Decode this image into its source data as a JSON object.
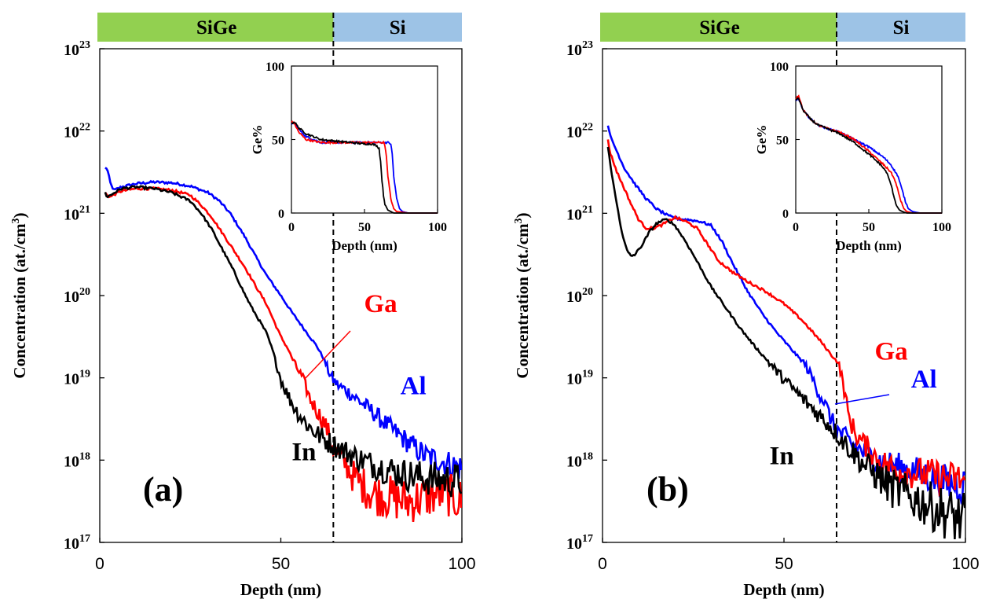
{
  "chart_data": [
    {
      "panel_label": "(a)",
      "type": "line",
      "x_scale": "linear",
      "y_scale": "log",
      "xlabel": "Depth (nm)",
      "ylabel": "Concentration (at./cm",
      "ylabel_sup": "3",
      "ylabel_end": ")",
      "xlim": [
        0,
        100
      ],
      "ylim_exp": [
        17,
        23
      ],
      "x_ticks": [
        0,
        50,
        100
      ],
      "y_ticks_exp": [
        17,
        18,
        19,
        20,
        21,
        22,
        23
      ],
      "y_tick_base": "10",
      "interface_depth": 64.5,
      "region_labels": [
        "SiGe",
        "Si"
      ],
      "region_colors": [
        "#92d050",
        "#9dc3e6"
      ],
      "series": [
        {
          "name": "Al",
          "color": "#0000ff",
          "x": [
            1.5,
            2,
            3,
            4,
            6,
            10,
            15,
            20,
            25,
            30,
            33,
            36,
            40,
            43,
            46,
            50,
            53,
            56,
            58,
            60,
            62,
            63,
            64,
            66,
            68,
            70,
            75,
            80,
            85,
            90,
            95,
            100
          ],
          "y": [
            21.55,
            21.55,
            21.35,
            21.28,
            21.32,
            21.36,
            21.38,
            21.37,
            21.33,
            21.25,
            21.15,
            21.0,
            20.72,
            20.48,
            20.25,
            20.0,
            19.8,
            19.62,
            19.5,
            19.38,
            19.22,
            19.1,
            19.0,
            18.9,
            18.85,
            18.78,
            18.6,
            18.4,
            18.22,
            18.05,
            17.98,
            17.9
          ],
          "label": {
            "text": "Al",
            "x": 83,
            "y": 18.8
          }
        },
        {
          "name": "Ga",
          "color": "#ff0000",
          "x": [
            1.5,
            2,
            3,
            4,
            6,
            10,
            15,
            20,
            25,
            28,
            31,
            34,
            37,
            40,
            43,
            46,
            48,
            50,
            52,
            54,
            56,
            58,
            60,
            62,
            63,
            64,
            65,
            66,
            68,
            70,
            75,
            80,
            85,
            90,
            95,
            100
          ],
          "y": [
            21.25,
            21.22,
            21.2,
            21.23,
            21.27,
            21.3,
            21.3,
            21.28,
            21.22,
            21.1,
            20.95,
            20.75,
            20.55,
            20.35,
            20.12,
            19.9,
            19.7,
            19.5,
            19.35,
            19.15,
            19.0,
            18.75,
            18.6,
            18.45,
            18.35,
            18.2,
            18.1,
            18.05,
            17.95,
            17.8,
            17.6,
            17.55,
            17.5,
            17.55,
            17.6,
            17.5
          ],
          "label": {
            "text": "Ga",
            "x": 73,
            "y": 19.8
          }
        },
        {
          "name": "In",
          "color": "#000000",
          "x": [
            1.5,
            2,
            3,
            4,
            6,
            10,
            15,
            20,
            25,
            28,
            31,
            34,
            37,
            40,
            42,
            44,
            46,
            48,
            50,
            52,
            54,
            56,
            58,
            60,
            62,
            64,
            66,
            70,
            75,
            80,
            85,
            90,
            95,
            100
          ],
          "y": [
            21.25,
            21.2,
            21.22,
            21.25,
            21.3,
            21.32,
            21.3,
            21.25,
            21.15,
            21.0,
            20.8,
            20.55,
            20.3,
            20.02,
            19.85,
            19.7,
            19.55,
            19.3,
            18.98,
            18.78,
            18.62,
            18.5,
            18.4,
            18.32,
            18.25,
            18.2,
            18.15,
            18.05,
            17.95,
            17.88,
            17.82,
            17.78,
            17.76,
            17.75
          ],
          "label": {
            "text": "In",
            "x": 53,
            "y": 18.0
          }
        }
      ],
      "inset": {
        "xlabel": "Depth (nm)",
        "ylabel": "Ge%",
        "xlim": [
          0,
          100
        ],
        "ylim": [
          0,
          100
        ],
        "x_ticks": [
          0,
          50,
          100
        ],
        "y_ticks": [
          0,
          50,
          100
        ],
        "series": [
          {
            "name": "Al",
            "color": "#0000ff",
            "x": [
              0,
              2,
              5,
              10,
              15,
              20,
              30,
              40,
              50,
              60,
              66,
              68,
              69,
              70,
              72,
              74,
              76,
              80,
              90,
              100
            ],
            "y": [
              60,
              61,
              57,
              52,
              50,
              48,
              48,
              48,
              48,
              48,
              48,
              47,
              40,
              25,
              10,
              3,
              1,
              0,
              0,
              0
            ]
          },
          {
            "name": "Ga",
            "color": "#ff0000",
            "x": [
              0,
              2,
              5,
              10,
              15,
              20,
              30,
              40,
              50,
              60,
              63,
              64,
              65,
              66,
              68,
              70,
              72,
              80,
              90,
              100
            ],
            "y": [
              62,
              61,
              55,
              50,
              49,
              48,
              48,
              48,
              48,
              48,
              48,
              46,
              38,
              25,
              10,
              3,
              1,
              0,
              0,
              0
            ]
          },
          {
            "name": "In",
            "color": "#000000",
            "x": [
              0,
              2,
              5,
              10,
              15,
              20,
              30,
              40,
              50,
              55,
              58,
              60,
              61,
              62,
              63,
              64,
              66,
              70,
              80,
              100
            ],
            "y": [
              61,
              62,
              58,
              54,
              52,
              50,
              49,
              48,
              47,
              47,
              46,
              44,
              35,
              22,
              12,
              6,
              2,
              0,
              0,
              0
            ]
          }
        ]
      }
    },
    {
      "panel_label": "(b)",
      "type": "line",
      "x_scale": "linear",
      "y_scale": "log",
      "xlabel": "Depth (nm)",
      "ylabel": "Concentration (at./cm",
      "ylabel_sup": "3",
      "ylabel_end": ")",
      "xlim": [
        0,
        100
      ],
      "ylim_exp": [
        17,
        23
      ],
      "x_ticks": [
        0,
        50,
        100
      ],
      "y_ticks_exp": [
        17,
        18,
        19,
        20,
        21,
        22,
        23
      ],
      "y_tick_base": "10",
      "interface_depth": 64.5,
      "region_labels": [
        "SiGe",
        "Si"
      ],
      "region_colors": [
        "#92d050",
        "#9dc3e6"
      ],
      "series": [
        {
          "name": "Al",
          "color": "#0000ff",
          "x": [
            1.5,
            2,
            4,
            6,
            9,
            12,
            15,
            18,
            21,
            24,
            27,
            30,
            33,
            36,
            40,
            44,
            48,
            52,
            56,
            58,
            60,
            61,
            62,
            64,
            66,
            70,
            75,
            80,
            85,
            90,
            95,
            100
          ],
          "y": [
            22.08,
            21.95,
            21.75,
            21.55,
            21.35,
            21.18,
            21.05,
            20.97,
            20.93,
            20.92,
            20.9,
            20.85,
            20.65,
            20.38,
            20.05,
            19.78,
            19.55,
            19.35,
            19.15,
            18.98,
            18.78,
            18.72,
            18.6,
            18.4,
            18.3,
            18.15,
            18.02,
            17.93,
            17.88,
            17.8,
            17.72,
            17.7
          ],
          "label": {
            "text": "Al",
            "x": 85,
            "y": 18.88
          }
        },
        {
          "name": "Ga",
          "color": "#ff0000",
          "x": [
            1.5,
            2,
            4,
            6,
            8,
            10,
            12,
            14,
            16,
            18,
            20,
            23,
            26,
            29,
            32,
            36,
            40,
            45,
            50,
            55,
            60,
            63,
            65,
            66,
            67,
            68,
            70,
            73,
            76,
            80,
            85,
            90,
            95,
            100
          ],
          "y": [
            21.9,
            21.75,
            21.5,
            21.3,
            21.1,
            20.92,
            20.82,
            20.82,
            20.85,
            20.9,
            20.95,
            20.9,
            20.82,
            20.62,
            20.42,
            20.28,
            20.17,
            20.05,
            19.9,
            19.7,
            19.45,
            19.28,
            19.18,
            19.0,
            18.75,
            18.5,
            18.3,
            18.15,
            18.0,
            17.9,
            17.85,
            17.82,
            17.78,
            17.75
          ],
          "label": {
            "text": "Ga",
            "x": 75,
            "y": 19.22
          }
        },
        {
          "name": "In",
          "color": "#000000",
          "x": [
            1.5,
            2,
            3,
            4,
            5,
            6,
            7,
            8,
            9,
            11,
            13,
            15,
            17,
            18,
            20,
            23,
            26,
            30,
            34,
            38,
            42,
            46,
            50,
            54,
            58,
            62,
            65,
            68,
            72,
            76,
            80,
            85,
            90,
            95,
            100
          ],
          "y": [
            21.8,
            21.65,
            21.35,
            21.1,
            20.85,
            20.65,
            20.52,
            20.48,
            20.5,
            20.62,
            20.78,
            20.88,
            20.92,
            20.92,
            20.85,
            20.65,
            20.42,
            20.1,
            19.85,
            19.6,
            19.38,
            19.18,
            18.98,
            18.8,
            18.62,
            18.45,
            18.3,
            18.15,
            17.95,
            17.8,
            17.65,
            17.55,
            17.45,
            17.35,
            17.25
          ],
          "label": {
            "text": "In",
            "x": 46,
            "y": 17.95
          }
        }
      ],
      "inset": {
        "xlabel": "Depth (nm)",
        "ylabel": "Ge%",
        "xlim": [
          0,
          100
        ],
        "ylim": [
          0,
          100
        ],
        "x_ticks": [
          0,
          50,
          100
        ],
        "y_ticks": [
          0,
          50,
          100
        ],
        "series": [
          {
            "name": "Al",
            "color": "#0000ff",
            "x": [
              0,
              2,
              5,
              10,
              15,
              20,
              30,
              40,
              50,
              60,
              65,
              70,
              73,
              75,
              77,
              80,
              85,
              90,
              100
            ],
            "y": [
              76,
              78,
              70,
              64,
              60,
              58,
              55,
              50,
              45,
              38,
              33,
              25,
              15,
              8,
              3,
              1,
              0,
              0,
              0
            ]
          },
          {
            "name": "Ga",
            "color": "#ff0000",
            "x": [
              0,
              2,
              5,
              10,
              15,
              20,
              30,
              40,
              50,
              60,
              65,
              68,
              70,
              72,
              74,
              76,
              80,
              90,
              100
            ],
            "y": [
              78,
              80,
              70,
              64,
              60,
              58,
              55,
              50,
              42,
              33,
              28,
              22,
              15,
              8,
              3,
              1,
              0,
              0,
              0
            ]
          },
          {
            "name": "In",
            "color": "#000000",
            "x": [
              0,
              2,
              5,
              10,
              15,
              20,
              30,
              40,
              50,
              58,
              62,
              65,
              67,
              69,
              71,
              73,
              76,
              80,
              100
            ],
            "y": [
              77,
              78,
              70,
              64,
              60,
              58,
              54,
              48,
              40,
              33,
              28,
              20,
              12,
              5,
              2,
              1,
              0,
              0,
              0
            ]
          }
        ]
      }
    }
  ]
}
